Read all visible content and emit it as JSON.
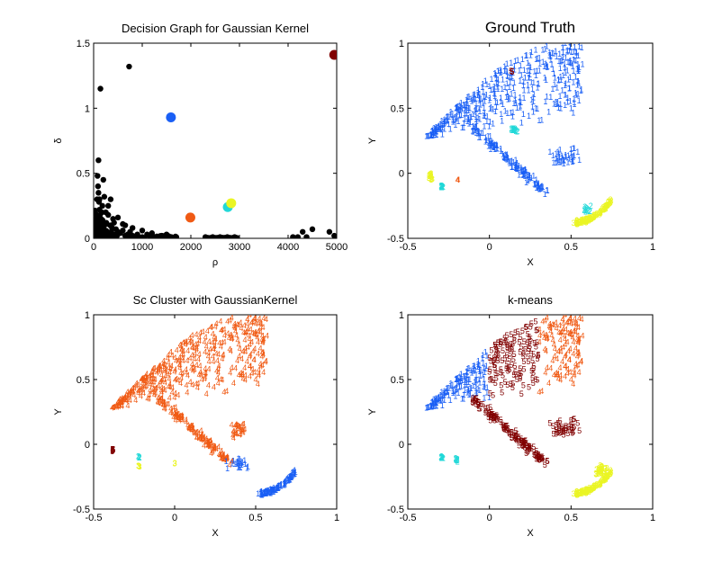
{
  "chart_data": [
    {
      "type": "scatter",
      "title": "Decision Graph for Gaussian Kernel",
      "xlabel": "ρ",
      "ylabel": "δ",
      "xlim": [
        0,
        5000
      ],
      "ylim": [
        0,
        1.5
      ],
      "xticks": [
        "0",
        "1000",
        "2000",
        "3000",
        "4000",
        "5000"
      ],
      "yticks": [
        "0",
        "0.5",
        "1",
        "1.5"
      ],
      "grid": false,
      "series": [
        {
          "marker": "dot",
          "color": "#000000",
          "points": [
            [
              20,
              0.02
            ],
            [
              40,
              0.05
            ],
            [
              60,
              0.1
            ],
            [
              70,
              0.3
            ],
            [
              80,
              0.48
            ],
            [
              90,
              0.4
            ],
            [
              100,
              0.35
            ],
            [
              110,
              0.28
            ],
            [
              120,
              0.22
            ],
            [
              130,
              0.18
            ],
            [
              140,
              1.15
            ],
            [
              150,
              0.15
            ],
            [
              160,
              0.12
            ],
            [
              170,
              0.2
            ],
            [
              180,
              0.1
            ],
            [
              200,
              0.08
            ],
            [
              220,
              0.32
            ],
            [
              240,
              0.06
            ],
            [
              260,
              0.12
            ],
            [
              280,
              0.04
            ],
            [
              300,
              0.18
            ],
            [
              320,
              0.02
            ],
            [
              340,
              0.1
            ],
            [
              360,
              0.05
            ],
            [
              380,
              0.08
            ],
            [
              400,
              0.03
            ],
            [
              420,
              0.12
            ],
            [
              440,
              0.01
            ],
            [
              460,
              0.07
            ],
            [
              480,
              0.02
            ],
            [
              500,
              0.05
            ],
            [
              550,
              0.04
            ],
            [
              600,
              0.06
            ],
            [
              650,
              0.02
            ],
            [
              700,
              0.03
            ],
            [
              730,
              1.32
            ],
            [
              750,
              0.05
            ],
            [
              800,
              0.02
            ],
            [
              900,
              0.03
            ],
            [
              1000,
              0.01
            ],
            [
              1100,
              0.03
            ],
            [
              1200,
              0.02
            ],
            [
              1300,
              0.01
            ],
            [
              1400,
              0.02
            ],
            [
              1500,
              0.01
            ],
            [
              1600,
              0.01
            ],
            [
              1700,
              0.01
            ],
            [
              2300,
              0.01
            ],
            [
              2450,
              0.01
            ],
            [
              2600,
              0.01
            ],
            [
              2750,
              0.01
            ],
            [
              2900,
              0.01
            ],
            [
              4100,
              0.01
            ],
            [
              4200,
              0.01
            ],
            [
              4300,
              0.05
            ],
            [
              4380,
              0.01
            ],
            [
              4500,
              0.07
            ],
            [
              4850,
              0.05
            ],
            [
              4950,
              0.02
            ],
            [
              5000,
              0.01
            ],
            [
              600,
              0.11
            ],
            [
              500,
              0.16
            ],
            [
              200,
              0.45
            ],
            [
              120,
              0.3
            ],
            [
              250,
              0.2
            ],
            [
              400,
              0.15
            ],
            [
              300,
              0.25
            ],
            [
              650,
              0.1
            ],
            [
              1000,
              0.06
            ],
            [
              1200,
              0.04
            ],
            [
              800,
              0.08
            ],
            [
              350,
              0.3
            ],
            [
              100,
              0.6
            ],
            [
              180,
              0.25
            ],
            [
              1500,
              0.03
            ]
          ]
        },
        {
          "marker": "dot-large",
          "points": [
            [
              4950,
              1.41
            ],
            [
              1590,
              0.93
            ],
            [
              1990,
              0.16
            ],
            [
              2760,
              0.24
            ],
            [
              2830,
              0.27
            ]
          ],
          "colors": [
            "#800000",
            "#1a5ff5",
            "#f05a14",
            "#22d8d8",
            "#eaf524"
          ]
        }
      ]
    },
    {
      "type": "scatter",
      "title": "Ground Truth",
      "xlabel": "X",
      "ylabel": "Y",
      "xlim": [
        -0.5,
        1
      ],
      "ylim": [
        -0.5,
        1
      ],
      "xticks": [
        "-0.5",
        "0",
        "0.5",
        "1"
      ],
      "yticks": [
        "-0.5",
        "0",
        "0.5",
        "1"
      ],
      "grid": false
    },
    {
      "type": "scatter",
      "title": "Sc Cluster with GaussianKernel",
      "xlabel": "X",
      "ylabel": "Y",
      "xlim": [
        -0.5,
        1
      ],
      "ylim": [
        -0.5,
        1
      ],
      "xticks": [
        "-0.5",
        "0",
        "0.5",
        "1"
      ],
      "yticks": [
        "-0.5",
        "0",
        "0.5",
        "1"
      ],
      "grid": false
    },
    {
      "type": "scatter",
      "title": "k-means",
      "xlabel": "X",
      "ylabel": "Y",
      "xlim": [
        -0.5,
        1
      ],
      "ylim": [
        -0.5,
        1
      ],
      "xticks": [
        "-0.5",
        "0",
        "0.5",
        "1"
      ],
      "yticks": [
        "-0.5",
        "0",
        "0.5",
        "1"
      ],
      "grid": false
    }
  ],
  "cluster_colors": {
    "1": "#1a5ff5",
    "2": "#22d8d8",
    "3": "#eaf524",
    "4": "#f05a14",
    "5": "#800000"
  },
  "cluster_point_labels": [
    "1",
    "2",
    "3",
    "4",
    "5"
  ]
}
